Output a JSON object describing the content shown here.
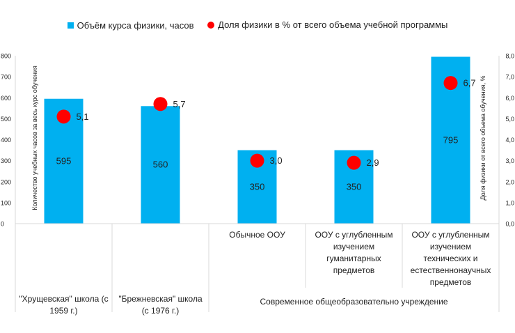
{
  "legend": {
    "bar_label": "Объём курса физики, часов",
    "dot_label": "Доля физики в % от всего объема учебной программы"
  },
  "colors": {
    "bar": "#00B0F0",
    "dot": "#FF0000",
    "axis_text": "#222222",
    "grid": "#D9D9D9"
  },
  "chart_data": {
    "type": "bar",
    "categories": [
      "\"Хрущевская\" школа (с 1959 г.)",
      "\"Брежневская\" школа (с 1976 г.)",
      "Обычное ООУ",
      "ООУ с углубленным изучением гуманитарных предметов",
      "ООУ с углубленным изучением технических и естественнонаучных предметов"
    ],
    "category_lines": [
      [],
      [],
      [
        "Обычное ООУ"
      ],
      [
        "ООУ с углубленным",
        "изучением",
        "гуманитарных",
        "предметов"
      ],
      [
        "ООУ с углубленным",
        "изучением",
        "технических и",
        "естественнонаучных",
        "предметов"
      ]
    ],
    "group_labels": [
      {
        "lines": [
          "\"Хрущевская\" школа (с",
          "1959 г.)"
        ],
        "span": [
          0,
          0
        ]
      },
      {
        "lines": [
          "\"Брежневская\" школа",
          "(с 1976 г.)"
        ],
        "span": [
          1,
          1
        ]
      },
      {
        "lines": [
          "Современное общеобразовательно учреждение"
        ],
        "span": [
          2,
          4
        ]
      }
    ],
    "series": [
      {
        "name": "Объём курса физики, часов",
        "type": "bar",
        "axis": "left",
        "values": [
          595,
          560,
          350,
          350,
          795
        ],
        "labels": [
          "595",
          "560",
          "350",
          "350",
          "795"
        ]
      },
      {
        "name": "Доля физики в % от всего объема учебной программы",
        "type": "scatter",
        "axis": "right",
        "values": [
          5.1,
          5.7,
          3.0,
          2.9,
          6.7
        ],
        "labels": [
          "5,1",
          "5,7",
          "3,0",
          "2,9",
          "6,7"
        ]
      }
    ],
    "ylabel": "Количество учебных часов за весь курс обучения",
    "y2label": "Доля физики от всего объема обучения, %",
    "ylim": [
      0,
      800
    ],
    "y2lim": [
      0,
      8
    ],
    "yticks": [
      "0",
      "100",
      "200",
      "300",
      "400",
      "500",
      "600",
      "700",
      "800"
    ],
    "y2ticks": [
      "0,0",
      "1,0",
      "2,0",
      "3,0",
      "4,0",
      "5,0",
      "6,0",
      "7,0",
      "8,0"
    ],
    "grid": false,
    "legend_position": "top"
  }
}
